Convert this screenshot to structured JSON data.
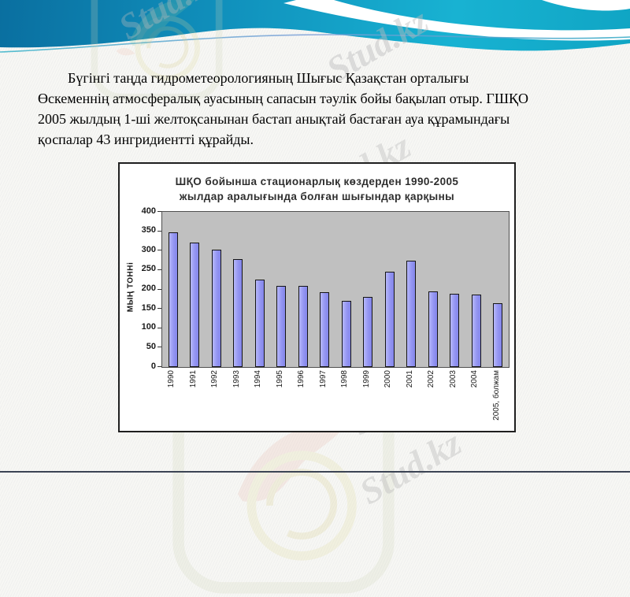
{
  "slide": {
    "paragraph_lines": [
      "Бүгінгі таңда гидрометеорологияның Шығыс Қазақстан орталығы",
      "Өскеменнің атмосфералық ауасының сапасын тәулік бойы бақылап отыр. ГШҚО",
      "2005 жылдың 1-ші желтоқсанынан бастап анықтай бастаған ауа құрамындағы",
      "қоспалар 43 ингридиентті құрайды."
    ]
  },
  "watermarks": {
    "brand": "Stud.kz",
    "tile_double": "Stud.kz - Stud.kz",
    "tile_dash": "- Stud.kz"
  },
  "chart_data": {
    "type": "bar",
    "title": "ШҚО бойынша стационарлық көздерден 1990-2005 жылдар аралығында болған шығындар қарқыны",
    "title_lines": [
      "ШҚО бойынша стационарлық көздерден 1990-2005",
      "жылдар аралығында болған шығындар қарқыны"
    ],
    "ylabel": "МЫҢ ТОННі",
    "xlabel": "",
    "categories": [
      "1990",
      "1991",
      "1992",
      "1993",
      "1994",
      "1995",
      "1996",
      "1997",
      "1998",
      "1999",
      "2000",
      "2001",
      "2002",
      "2003",
      "2004",
      "2005, болжам"
    ],
    "values": [
      348,
      320,
      302,
      278,
      225,
      210,
      210,
      192,
      170,
      180,
      245,
      275,
      195,
      188,
      186,
      165
    ],
    "ylim": [
      0,
      400
    ],
    "yticks": [
      0,
      50,
      100,
      150,
      200,
      250,
      300,
      350,
      400
    ],
    "grid": false,
    "legend": false,
    "plot_bg": "#C0C0C0",
    "bar_color": "#9495F2",
    "bar_border": "#141414"
  },
  "colors": {
    "header_dark_blue": "#0A6FA0",
    "header_cyan": "#18B2D2",
    "page_bg": "#F7F7F4",
    "bottom_line": "#3C4454",
    "chart_border": "#1F1F1F"
  }
}
